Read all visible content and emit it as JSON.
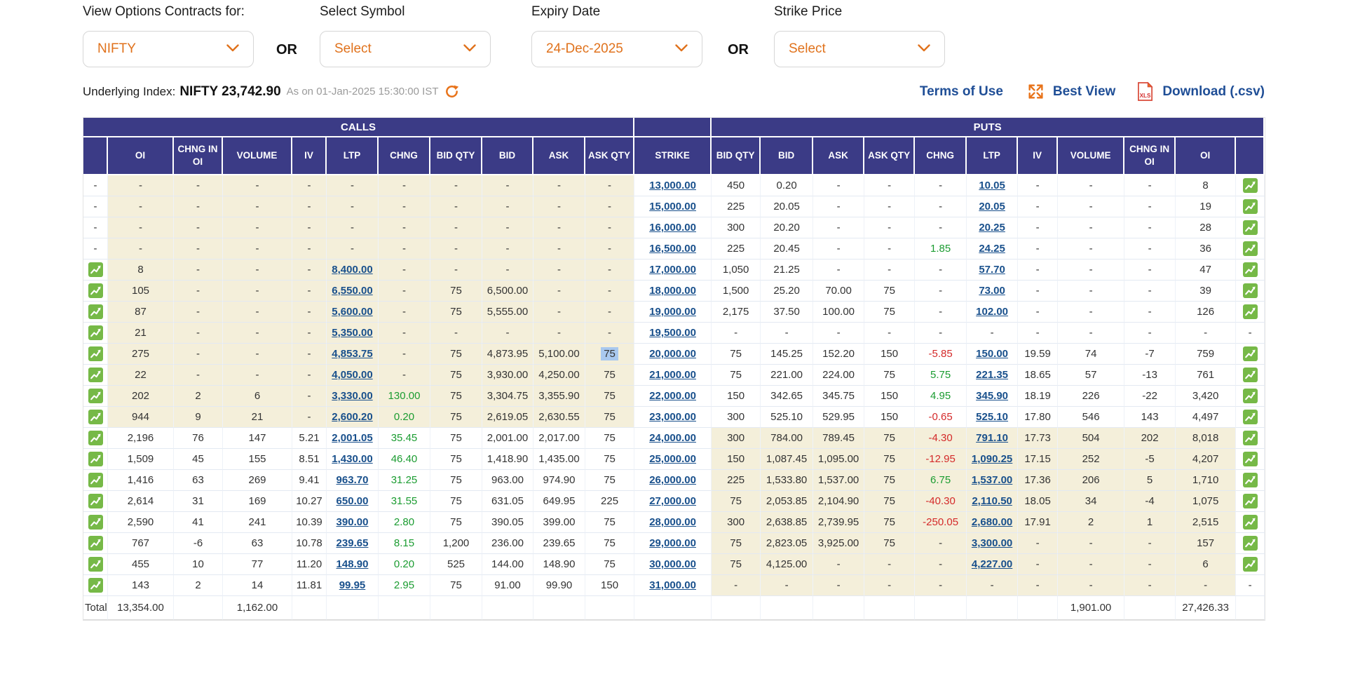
{
  "filters": {
    "view_label": "View Options Contracts for:",
    "view_value": "NIFTY",
    "or1": "OR",
    "symbol_label": "Select Symbol",
    "symbol_value": "Select",
    "expiry_label": "Expiry Date",
    "expiry_value": "24-Dec-2025",
    "or2": "OR",
    "strike_label": "Strike Price",
    "strike_value": "Select"
  },
  "underlying": {
    "prefix": "Underlying Index:",
    "value": "NIFTY 23,742.90",
    "as_on": "As on 01-Jan-2025 15:30:00 IST"
  },
  "links": {
    "terms": "Terms of Use",
    "best_view": "Best View",
    "download": "Download (.csv)",
    "xls_badge": "XLS"
  },
  "colors": {
    "accent_orange": "#e0721c",
    "header_indigo": "#3b3b86",
    "link_blue": "#19508c",
    "positive_green": "#1b9c31",
    "negative_red": "#d42a2a",
    "itm_beige": "#f4efda",
    "selection_highlight": "#a9c9ef",
    "chart_icon_green": "#76b947"
  },
  "table": {
    "groups": {
      "calls": "CALLS",
      "puts": "PUTS"
    },
    "columns_calls": [
      "",
      "OI",
      "CHNG IN OI",
      "VOLUME",
      "IV",
      "LTP",
      "CHNG",
      "BID QTY",
      "BID",
      "ASK",
      "ASK QTY"
    ],
    "strike_col": "STRIKE",
    "columns_puts": [
      "BID QTY",
      "BID",
      "ASK",
      "ASK QTY",
      "CHNG",
      "LTP",
      "IV",
      "VOLUME",
      "CHNG IN OI",
      "OI",
      ""
    ],
    "call_keys": [
      "oi",
      "chng-in-oi",
      "volume",
      "iv",
      "ltp",
      "chng",
      "bid-qty",
      "bid",
      "ask",
      "ask-qty"
    ],
    "put_keys": [
      "bid-qty",
      "bid",
      "ask",
      "ask-qty",
      "chng",
      "ltp",
      "iv",
      "volume",
      "chng-in-oi",
      "oi"
    ],
    "rows": [
      {
        "strike": "13,000.00",
        "itm": "C",
        "ci": false,
        "c": [
          "-",
          "-",
          "-",
          "-",
          "-",
          "-",
          "-",
          "-",
          "-",
          "-"
        ],
        "p": [
          "450",
          "0.20",
          "-",
          "-",
          "-",
          "10.05",
          "-",
          "-",
          "-",
          "8"
        ],
        "pi": true
      },
      {
        "strike": "15,000.00",
        "itm": "C",
        "ci": false,
        "c": [
          "-",
          "-",
          "-",
          "-",
          "-",
          "-",
          "-",
          "-",
          "-",
          "-"
        ],
        "p": [
          "225",
          "20.05",
          "-",
          "-",
          "-",
          "20.05",
          "-",
          "-",
          "-",
          "19"
        ],
        "pi": true
      },
      {
        "strike": "16,000.00",
        "itm": "C",
        "ci": false,
        "c": [
          "-",
          "-",
          "-",
          "-",
          "-",
          "-",
          "-",
          "-",
          "-",
          "-"
        ],
        "p": [
          "300",
          "20.20",
          "-",
          "-",
          "-",
          "20.25",
          "-",
          "-",
          "-",
          "28"
        ],
        "pi": true
      },
      {
        "strike": "16,500.00",
        "itm": "C",
        "ci": false,
        "c": [
          "-",
          "-",
          "-",
          "-",
          "-",
          "-",
          "-",
          "-",
          "-",
          "-"
        ],
        "p": [
          "225",
          "20.45",
          "-",
          "-",
          "1.85",
          "24.25",
          "-",
          "-",
          "-",
          "36"
        ],
        "pi": true
      },
      {
        "strike": "17,000.00",
        "itm": "C",
        "ci": true,
        "c": [
          "8",
          "-",
          "-",
          "-",
          "8,400.00",
          "-",
          "-",
          "-",
          "-",
          "-"
        ],
        "p": [
          "1,050",
          "21.25",
          "-",
          "-",
          "-",
          "57.70",
          "-",
          "-",
          "-",
          "47"
        ],
        "pi": true
      },
      {
        "strike": "18,000.00",
        "itm": "C",
        "ci": true,
        "c": [
          "105",
          "-",
          "-",
          "-",
          "6,550.00",
          "-",
          "75",
          "6,500.00",
          "-",
          "-"
        ],
        "p": [
          "1,500",
          "25.20",
          "70.00",
          "75",
          "-",
          "73.00",
          "-",
          "-",
          "-",
          "39"
        ],
        "pi": true
      },
      {
        "strike": "19,000.00",
        "itm": "C",
        "ci": true,
        "c": [
          "87",
          "-",
          "-",
          "-",
          "5,600.00",
          "-",
          "75",
          "5,555.00",
          "-",
          "-"
        ],
        "p": [
          "2,175",
          "37.50",
          "100.00",
          "75",
          "-",
          "102.00",
          "-",
          "-",
          "-",
          "126"
        ],
        "pi": true
      },
      {
        "strike": "19,500.00",
        "itm": "C",
        "ci": true,
        "c": [
          "21",
          "-",
          "-",
          "-",
          "5,350.00",
          "-",
          "-",
          "-",
          "-",
          "-"
        ],
        "p": [
          "-",
          "-",
          "-",
          "-",
          "-",
          "-",
          "-",
          "-",
          "-",
          "-"
        ],
        "pi": false
      },
      {
        "strike": "20,000.00",
        "itm": "C",
        "ci": true,
        "c": [
          "275",
          "-",
          "-",
          "-",
          "4,853.75",
          "-",
          "75",
          "4,873.95",
          "5,100.00",
          "75"
        ],
        "c_sel": 9,
        "p": [
          "75",
          "145.25",
          "152.20",
          "150",
          "-5.85",
          "150.00",
          "19.59",
          "74",
          "-7",
          "759"
        ],
        "pi": true
      },
      {
        "strike": "21,000.00",
        "itm": "C",
        "ci": true,
        "c": [
          "22",
          "-",
          "-",
          "-",
          "4,050.00",
          "-",
          "75",
          "3,930.00",
          "4,250.00",
          "75"
        ],
        "p": [
          "75",
          "221.00",
          "224.00",
          "75",
          "5.75",
          "221.35",
          "18.65",
          "57",
          "-13",
          "761"
        ],
        "pi": true
      },
      {
        "strike": "22,000.00",
        "itm": "C",
        "ci": true,
        "c": [
          "202",
          "2",
          "6",
          "-",
          "3,330.00",
          "130.00",
          "75",
          "3,304.75",
          "3,355.90",
          "75"
        ],
        "p": [
          "150",
          "342.65",
          "345.75",
          "150",
          "4.95",
          "345.90",
          "18.19",
          "226",
          "-22",
          "3,420"
        ],
        "pi": true
      },
      {
        "strike": "23,000.00",
        "itm": "C",
        "ci": true,
        "c": [
          "944",
          "9",
          "21",
          "-",
          "2,600.20",
          "0.20",
          "75",
          "2,619.05",
          "2,630.55",
          "75"
        ],
        "p": [
          "300",
          "525.10",
          "529.95",
          "150",
          "-0.65",
          "525.10",
          "17.80",
          "546",
          "143",
          "4,497"
        ],
        "pi": true
      },
      {
        "strike": "24,000.00",
        "itm": "P",
        "ci": true,
        "c": [
          "2,196",
          "76",
          "147",
          "5.21",
          "2,001.05",
          "35.45",
          "75",
          "2,001.00",
          "2,017.00",
          "75"
        ],
        "p": [
          "300",
          "784.00",
          "789.45",
          "75",
          "-4.30",
          "791.10",
          "17.73",
          "504",
          "202",
          "8,018"
        ],
        "pi": true
      },
      {
        "strike": "25,000.00",
        "itm": "P",
        "ci": true,
        "c": [
          "1,509",
          "45",
          "155",
          "8.51",
          "1,430.00",
          "46.40",
          "75",
          "1,418.90",
          "1,435.00",
          "75"
        ],
        "p": [
          "150",
          "1,087.45",
          "1,095.00",
          "75",
          "-12.95",
          "1,090.25",
          "17.15",
          "252",
          "-5",
          "4,207"
        ],
        "pi": true
      },
      {
        "strike": "26,000.00",
        "itm": "P",
        "ci": true,
        "c": [
          "1,416",
          "63",
          "269",
          "9.41",
          "963.70",
          "31.25",
          "75",
          "963.00",
          "974.90",
          "75"
        ],
        "p": [
          "225",
          "1,533.80",
          "1,537.00",
          "75",
          "6.75",
          "1,537.00",
          "17.36",
          "206",
          "5",
          "1,710"
        ],
        "pi": true
      },
      {
        "strike": "27,000.00",
        "itm": "P",
        "ci": true,
        "c": [
          "2,614",
          "31",
          "169",
          "10.27",
          "650.00",
          "31.55",
          "75",
          "631.05",
          "649.95",
          "225"
        ],
        "p": [
          "75",
          "2,053.85",
          "2,104.90",
          "75",
          "-40.30",
          "2,110.50",
          "18.05",
          "34",
          "-4",
          "1,075"
        ],
        "pi": true
      },
      {
        "strike": "28,000.00",
        "itm": "P",
        "ci": true,
        "c": [
          "2,590",
          "41",
          "241",
          "10.39",
          "390.00",
          "2.80",
          "75",
          "390.05",
          "399.00",
          "75"
        ],
        "p": [
          "300",
          "2,638.85",
          "2,739.95",
          "75",
          "-250.05",
          "2,680.00",
          "17.91",
          "2",
          "1",
          "2,515"
        ],
        "pi": true
      },
      {
        "strike": "29,000.00",
        "itm": "P",
        "ci": true,
        "c": [
          "767",
          "-6",
          "63",
          "10.78",
          "239.65",
          "8.15",
          "1,200",
          "236.00",
          "239.65",
          "75"
        ],
        "p": [
          "75",
          "2,823.05",
          "3,925.00",
          "75",
          "-",
          "3,300.00",
          "-",
          "-",
          "-",
          "157"
        ],
        "pi": true
      },
      {
        "strike": "30,000.00",
        "itm": "P",
        "ci": true,
        "c": [
          "455",
          "10",
          "77",
          "11.20",
          "148.90",
          "0.20",
          "525",
          "144.00",
          "148.90",
          "75"
        ],
        "p": [
          "75",
          "4,125.00",
          "-",
          "-",
          "-",
          "4,227.00",
          "-",
          "-",
          "-",
          "6"
        ],
        "pi": true
      },
      {
        "strike": "31,000.00",
        "itm": "P",
        "ci": true,
        "c": [
          "143",
          "2",
          "14",
          "11.81",
          "99.95",
          "2.95",
          "75",
          "91.00",
          "99.90",
          "150"
        ],
        "p": [
          "-",
          "-",
          "-",
          "-",
          "-",
          "-",
          "-",
          "-",
          "-",
          "-"
        ],
        "pi": false
      }
    ],
    "total": {
      "label": "Total",
      "calls_oi": "13,354.00",
      "calls_volume": "1,162.00",
      "puts_volume": "1,901.00",
      "puts_oi": "27,426.33"
    }
  }
}
